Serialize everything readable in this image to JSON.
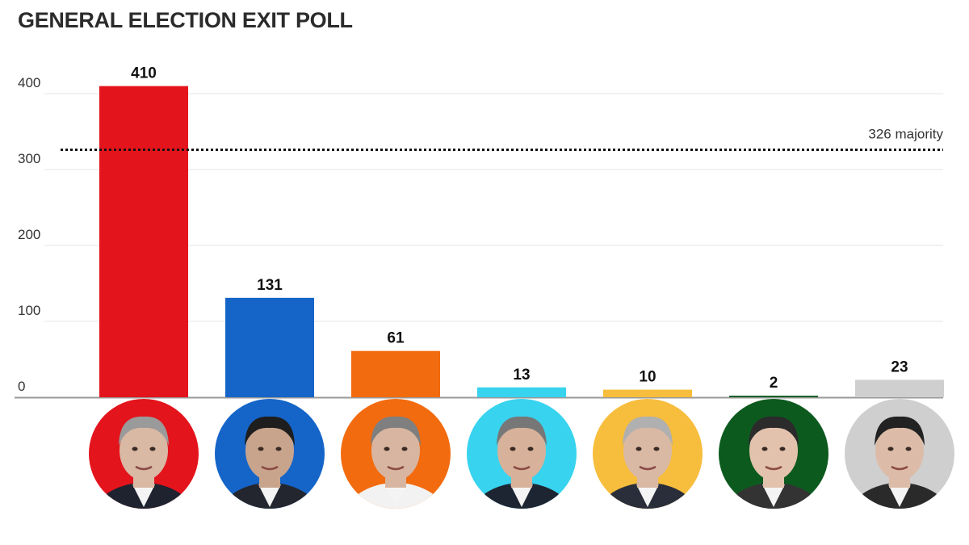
{
  "title": "GENERAL ELECTION EXIT POLL",
  "chart_data": {
    "type": "bar",
    "title": "GENERAL ELECTION EXIT POLL",
    "xlabel": "",
    "ylabel": "",
    "ylim": [
      0,
      400
    ],
    "yticks": [
      "0",
      "100",
      "200",
      "300",
      "400"
    ],
    "grid": true,
    "values": [
      410,
      131,
      61,
      13,
      10,
      2,
      23
    ],
    "colors": [
      "#e4141c",
      "#1565c9",
      "#f26b0f",
      "#38d3ee",
      "#f7bd3c",
      "#0d5a1f",
      "#cfcfcf"
    ],
    "reference_line": {
      "value": 326,
      "label": "326 majority"
    },
    "category_images": [
      "red-portrait",
      "blue-portrait",
      "orange-portrait",
      "cyan-portrait",
      "yellow-portrait",
      "green-portrait",
      "grey-portrait"
    ]
  }
}
